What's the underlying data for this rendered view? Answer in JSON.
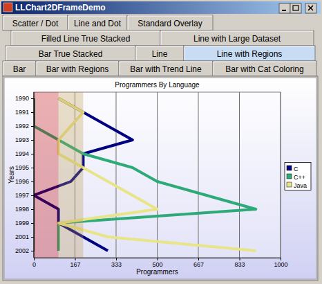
{
  "window": {
    "title": "LLChart2DFrameDemo",
    "tabs": [
      [
        "Scatter / Dot",
        "Line and Dot",
        "Standard Overlay"
      ],
      [
        "Filled Line True Stacked",
        "Line with Large Dataset"
      ],
      [
        "Bar True Stacked",
        "Line",
        "Line with Regions"
      ],
      [
        "Bar",
        "Bar with Regions",
        "Bar with Trend Line",
        "Bar with Cat Coloring"
      ]
    ]
  },
  "chart_data": {
    "type": "line",
    "orientation": "horizontal",
    "title": "Programmers By Language",
    "x_label": "Programmers",
    "y_label": "Years",
    "categories": [
      "1990",
      "1991",
      "1992",
      "1993",
      "1994",
      "1995",
      "1996",
      "1997",
      "1998",
      "1999",
      "2001",
      "2002"
    ],
    "series": [
      {
        "name": "C",
        "color": "#000080",
        "values": [
          100,
          200,
          300,
          400,
          200,
          200,
          150,
          0,
          100,
          100,
          200,
          300
        ]
      },
      {
        "name": "C++",
        "color": "#2eaa78",
        "values": [
          0,
          0,
          0,
          100,
          200,
          400,
          500,
          700,
          900,
          100,
          100,
          100
        ]
      },
      {
        "name": "Java",
        "color": "#e8e488",
        "values": [
          100,
          200,
          150,
          100,
          100,
          200,
          300,
          400,
          500,
          100,
          300,
          900
        ]
      }
    ],
    "regions": [
      {
        "from": 0,
        "to": 100,
        "color": "#c00000"
      },
      {
        "from": 100,
        "to": 200,
        "color": "#b8984c"
      }
    ],
    "xlim": [
      0,
      1000
    ],
    "xticks": [
      0,
      {
        "value": 166.667,
        "label": "167"
      },
      {
        "value": 333.333,
        "label": "333"
      },
      500,
      {
        "value": 666.667,
        "label": "667"
      },
      {
        "value": 833.333,
        "label": "833"
      },
      1000
    ],
    "grid": true,
    "legend": "right"
  }
}
